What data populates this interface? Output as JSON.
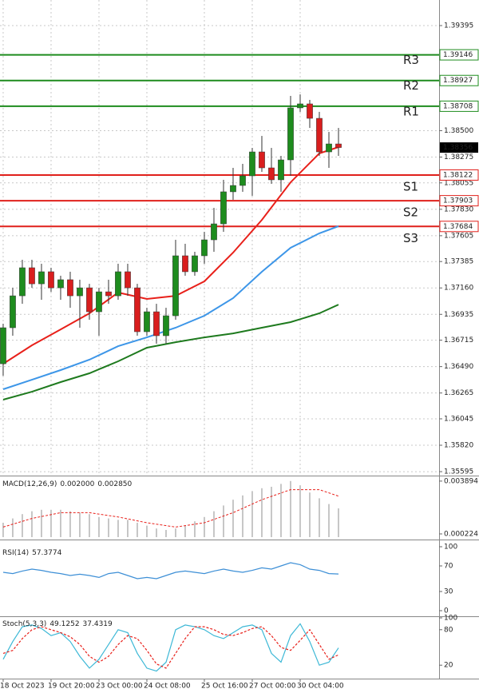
{
  "chart_data": [
    {
      "type": "candlestick",
      "open": [
        1.36514,
        1.36821,
        1.37093,
        1.37332,
        1.37195,
        1.37298,
        1.37161,
        1.3723,
        1.37093,
        1.37161,
        1.36957,
        1.37127,
        1.37093,
        1.37298,
        1.37161,
        1.36787,
        1.36957,
        1.36753,
        1.36923,
        1.37434,
        1.37298,
        1.37434,
        1.3757,
        1.37706,
        1.37979,
        1.38033,
        1.38115,
        1.38319,
        1.38183,
        1.38081,
        1.38251,
        1.38694,
        1.38728,
        1.38605,
        1.38319,
        1.38387
      ],
      "high": [
        1.36855,
        1.37161,
        1.374,
        1.374,
        1.37366,
        1.37332,
        1.37264,
        1.37298,
        1.3723,
        1.37195,
        1.37161,
        1.3723,
        1.37366,
        1.37366,
        1.37195,
        1.36991,
        1.37025,
        1.36991,
        1.3757,
        1.37536,
        1.37468,
        1.37638,
        1.37842,
        1.38081,
        1.38183,
        1.38217,
        1.38353,
        1.38455,
        1.38353,
        1.38285,
        1.38796,
        1.38809,
        1.38762,
        1.3866,
        1.38489,
        1.38523
      ],
      "low": [
        1.36412,
        1.36753,
        1.37025,
        1.37161,
        1.37059,
        1.37127,
        1.37059,
        1.36991,
        1.36821,
        1.36889,
        1.36753,
        1.37025,
        1.37059,
        1.37093,
        1.36753,
        1.36753,
        1.36685,
        1.36685,
        1.36889,
        1.37264,
        1.37264,
        1.37366,
        1.37468,
        1.37638,
        1.37911,
        1.37979,
        1.37945,
        1.38149,
        1.38047,
        1.37979,
        1.38115,
        1.3866,
        1.38523,
        1.38285,
        1.38183,
        1.38285
      ],
      "close": [
        1.36821,
        1.37093,
        1.37332,
        1.37195,
        1.37298,
        1.37161,
        1.3723,
        1.37093,
        1.37161,
        1.36957,
        1.37127,
        1.37093,
        1.37298,
        1.37161,
        1.36787,
        1.36957,
        1.36753,
        1.36923,
        1.37434,
        1.37298,
        1.37434,
        1.3757,
        1.37706,
        1.37979,
        1.38033,
        1.38115,
        1.38319,
        1.38183,
        1.38081,
        1.38251,
        1.38694,
        1.38728,
        1.38605,
        1.38319,
        1.38387,
        1.38356
      ],
      "up_color": "#1e8c1e",
      "down_color": "#d91e1e",
      "xlim": [
        -0.33,
        45.5
      ],
      "xticks": [
        {
          "value": 0,
          "label": "18 Oct 2023"
        },
        {
          "value": 5,
          "label": "19 Oct 20:00"
        },
        {
          "value": 10,
          "label": "23 Oct 00:00"
        },
        {
          "value": 15,
          "label": "24 Oct 08:00"
        },
        {
          "value": 21,
          "label": "25 Oct 16:00"
        },
        {
          "value": 26,
          "label": "27 Oct 00:00"
        },
        {
          "value": 31,
          "label": "30 Oct 04:00"
        }
      ],
      "ylim": [
        1.35575,
        1.39613
      ],
      "yticks": [
        1.39395,
        {
          "value": 1.385,
          "label": "1.38500"
        },
        1.38275,
        1.38055,
        {
          "value": 1.3783,
          "label": "1.37830"
        },
        1.37605,
        1.37385,
        {
          "value": 1.3716,
          "label": "1.37160"
        },
        1.36935,
        1.36715,
        {
          "value": 1.3649,
          "label": "1.36490"
        },
        1.36265,
        1.36045,
        {
          "value": 1.3582,
          "label": "1.35820"
        },
        1.35595
      ],
      "grid": true,
      "moving_averages": [
        {
          "color": "#1e7a1e",
          "x": [
            0,
            3,
            6,
            9,
            12,
            15,
            18,
            21,
            24,
            27,
            30,
            33,
            35
          ],
          "values": [
            1.36208,
            1.36276,
            1.36358,
            1.36433,
            1.36535,
            1.36651,
            1.36698,
            1.36739,
            1.36773,
            1.36821,
            1.36869,
            1.36944,
            1.37018
          ]
        },
        {
          "color": "#3d96e8",
          "x": [
            0,
            3,
            6,
            9,
            12,
            15,
            18,
            21,
            24,
            27,
            30,
            33,
            35
          ],
          "values": [
            1.36297,
            1.36378,
            1.3646,
            1.36549,
            1.36664,
            1.36739,
            1.36821,
            1.36923,
            1.37073,
            1.37298,
            1.37502,
            1.37625,
            1.37686
          ]
        },
        {
          "color": "#e8201a",
          "x": [
            0,
            3,
            6,
            9,
            12,
            15,
            18,
            21,
            24,
            27,
            30,
            33,
            35
          ],
          "values": [
            1.36514,
            1.36671,
            1.36807,
            1.36944,
            1.37121,
            1.37066,
            1.37093,
            1.37216,
            1.37461,
            1.3774,
            1.3806,
            1.38306,
            1.3836
          ]
        }
      ],
      "levels": [
        {
          "name": "R3",
          "value": 1.39146,
          "color": "#1e8c1e"
        },
        {
          "name": "R2",
          "value": 1.38927,
          "color": "#1e8c1e"
        },
        {
          "name": "R1",
          "value": 1.38708,
          "color": "#1e8c1e"
        },
        {
          "name": "S1",
          "value": 1.38122,
          "color": "#e0201b"
        },
        {
          "name": "S2",
          "value": 1.37903,
          "color": "#e0201b"
        },
        {
          "name": "S3",
          "value": 1.37684,
          "color": "#e0201b"
        }
      ],
      "last_price": 1.38356
    },
    {
      "type": "macd",
      "title": "MACD(12,26,9)",
      "readouts": [
        "0.002000",
        "0.002850"
      ],
      "values": [
        0.001,
        0.0013,
        0.0016,
        0.0018,
        0.0019,
        0.0019,
        0.0019,
        0.0018,
        0.0017,
        0.0016,
        0.0014,
        0.0013,
        0.0012,
        0.0012,
        0.001,
        0.0008,
        0.0006,
        0.0005,
        0.0006,
        0.0008,
        0.0011,
        0.0014,
        0.0018,
        0.0022,
        0.0026,
        0.0029,
        0.0032,
        0.0034,
        0.0035,
        0.0037,
        0.0039,
        0.0036,
        0.0031,
        0.0027,
        0.0023,
        0.002
      ],
      "color": "#b4b4b4",
      "signal": {
        "color": "#e8201a",
        "x": [
          0,
          3,
          6,
          9,
          12,
          15,
          18,
          21,
          24,
          27,
          30,
          33,
          35
        ],
        "values": [
          0.0007,
          0.0013,
          0.0017,
          0.0017,
          0.0014,
          0.001,
          0.0007,
          0.001,
          0.0017,
          0.0026,
          0.0033,
          0.0033,
          0.00285
        ]
      },
      "ylim": [
        0,
        0.00411
      ],
      "yticks": [
        0.003894,
        0.000224
      ]
    },
    {
      "type": "line",
      "title": "RSI(14)",
      "readouts": [
        "57.3774"
      ],
      "series": [
        {
          "color": "#3d8fd6",
          "dashed": false,
          "values": [
            60,
            58,
            62,
            65,
            63,
            60,
            58,
            55,
            57,
            55,
            52,
            58,
            60,
            55,
            50,
            52,
            50,
            55,
            60,
            62,
            60,
            58,
            62,
            65,
            62,
            60,
            63,
            67,
            65,
            70,
            75,
            72,
            65,
            63,
            58,
            57.3774
          ]
        }
      ],
      "ylim": [
        0,
        100
      ],
      "yticks": [
        100,
        70,
        30,
        0
      ]
    },
    {
      "type": "line",
      "title": "Stoch(5,3,3)",
      "readouts": [
        "49.1252",
        "37.4319"
      ],
      "series": [
        {
          "color": "#3db8d6",
          "dashed": false,
          "values": [
            30,
            60,
            85,
            88,
            82,
            70,
            75,
            60,
            35,
            15,
            30,
            55,
            80,
            75,
            40,
            15,
            10,
            25,
            80,
            88,
            85,
            80,
            70,
            65,
            75,
            85,
            88,
            80,
            40,
            25,
            70,
            90,
            60,
            20,
            25,
            49.1252
          ]
        },
        {
          "color": "#e8201a",
          "dashed": true,
          "values": [
            40,
            45,
            65,
            80,
            85,
            80,
            75,
            68,
            55,
            35,
            25,
            35,
            55,
            70,
            65,
            45,
            22,
            15,
            40,
            65,
            85,
            85,
            80,
            72,
            70,
            75,
            82,
            85,
            70,
            50,
            45,
            62,
            80,
            55,
            30,
            37.4319
          ]
        }
      ],
      "ylim": [
        0,
        100
      ],
      "yticks": [
        100,
        80,
        20
      ]
    }
  ]
}
